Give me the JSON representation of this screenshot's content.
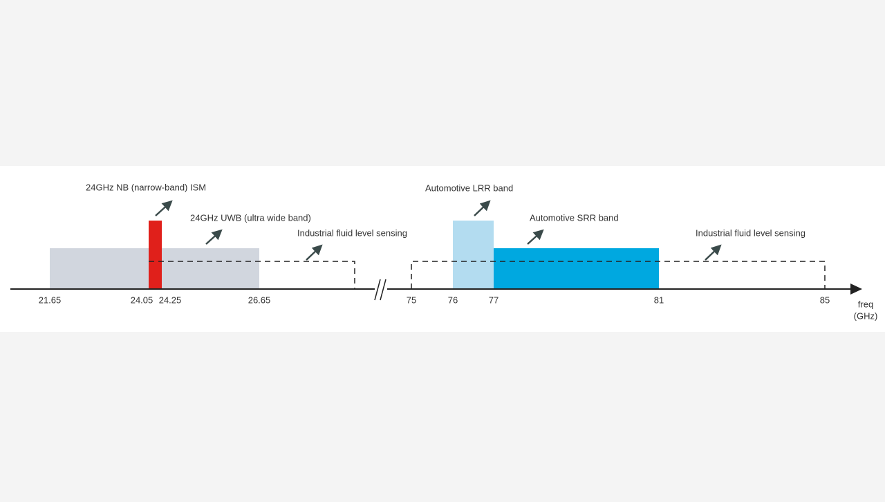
{
  "bands": [
    {
      "label": "24GHz NB (narrow-band) ISM"
    },
    {
      "label": "24GHz UWB (ultra wide band)"
    },
    {
      "label": "Industrial fluid level sensing"
    },
    {
      "label": "Automotive LRR band"
    },
    {
      "label": "Automotive SRR band"
    },
    {
      "label": "Industrial fluid level sensing"
    }
  ],
  "axis": {
    "ticks": [
      "21.65",
      "24.05",
      "24.25",
      "26.65",
      "75",
      "76",
      "77",
      "81",
      "85"
    ],
    "label": "freq",
    "unit": "(GHz)"
  }
}
